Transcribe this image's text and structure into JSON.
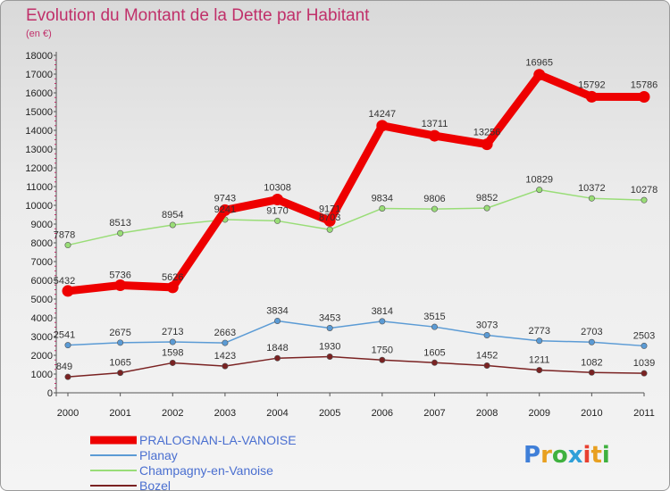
{
  "header": {
    "title": "Evolution du Montant de la Dette par Habitant",
    "subtitle": "(en €)"
  },
  "brand": {
    "letters": [
      "P",
      "r",
      "o",
      "x",
      "i",
      "t",
      "i"
    ],
    "colors": [
      "#3f7fd8",
      "#e8a020",
      "#3fb13f",
      "#2f9fd8",
      "#e84030",
      "#e8a020",
      "#3fb13f"
    ]
  },
  "chart_data": {
    "type": "line",
    "title": "Evolution du Montant de la Dette par Habitant",
    "subtitle": "(en €)",
    "x": [
      "2000",
      "2001",
      "2002",
      "2003",
      "2004",
      "2005",
      "2006",
      "2007",
      "2008",
      "2009",
      "2010",
      "2011"
    ],
    "ylim": [
      0,
      18000
    ],
    "yticks": [
      0,
      1000,
      2000,
      3000,
      4000,
      5000,
      6000,
      7000,
      8000,
      9000,
      10000,
      11000,
      12000,
      13000,
      14000,
      15000,
      16000,
      17000,
      18000
    ],
    "grid": false,
    "legend_position": "bottom-left",
    "series": [
      {
        "name": "PRALOGNAN-LA-VANOISE",
        "color": "#ee0000",
        "values": [
          5432,
          5736,
          5626,
          9743,
          10308,
          9171,
          14247,
          13711,
          13256,
          16965,
          15792,
          15786
        ]
      },
      {
        "name": "Planay",
        "color": "#5b9bd5",
        "values": [
          2541,
          2675,
          2713,
          2663,
          3834,
          3453,
          3814,
          3515,
          3073,
          2773,
          2703,
          2503
        ]
      },
      {
        "name": "Champagny-en-Vanoise",
        "color": "#99dd77",
        "values": [
          7878,
          8513,
          8954,
          9241,
          9170,
          8703,
          9834,
          9806,
          9852,
          10829,
          10372,
          10278
        ]
      },
      {
        "name": "Bozel",
        "color": "#7a2222",
        "values": [
          849,
          1065,
          1598,
          1423,
          1848,
          1930,
          1750,
          1605,
          1452,
          1211,
          1082,
          1039
        ]
      }
    ]
  }
}
